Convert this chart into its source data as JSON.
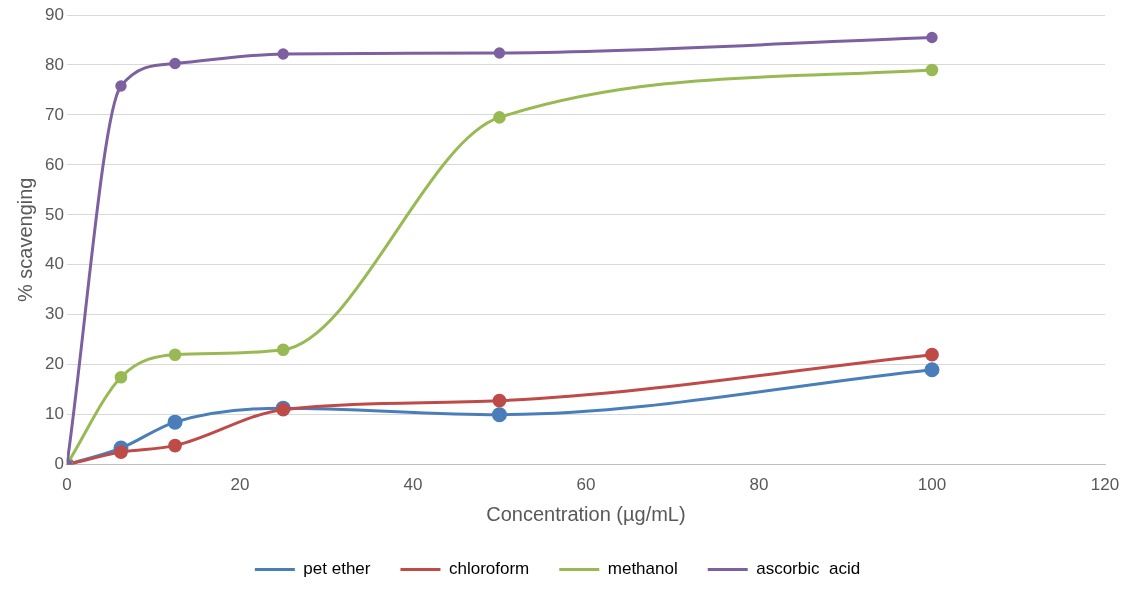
{
  "chart_data": {
    "type": "line",
    "xlabel": "Concentration (µg/mL)",
    "ylabel": "% scavenging",
    "x": [
      0,
      6.25,
      12.5,
      25,
      50,
      100
    ],
    "series": [
      {
        "name": "pet ether",
        "color": "#4a7ebb",
        "values": [
          0,
          3.3,
          8.5,
          11.3,
          10,
          19
        ]
      },
      {
        "name": "chloroform",
        "color": "#be4b48",
        "values": [
          0,
          2.5,
          3.8,
          11,
          12.8,
          22
        ]
      },
      {
        "name": "methanol",
        "color": "#98b954",
        "values": [
          0,
          17.5,
          22,
          23,
          69.5,
          79
        ]
      },
      {
        "name": "ascorbic  acid",
        "color": "#7d60a0",
        "values": [
          0,
          75.8,
          80.3,
          82.2,
          82.4,
          85.5
        ]
      }
    ],
    "xlim": [
      0,
      120
    ],
    "xticks": [
      0,
      20,
      40,
      60,
      80,
      100,
      120
    ],
    "ylim": [
      0,
      90
    ],
    "yticks": [
      0,
      10,
      20,
      30,
      40,
      50,
      60,
      70,
      80,
      90
    ],
    "grid": "y",
    "legend": "bottom",
    "marker": "circle",
    "line_style": "solid"
  }
}
